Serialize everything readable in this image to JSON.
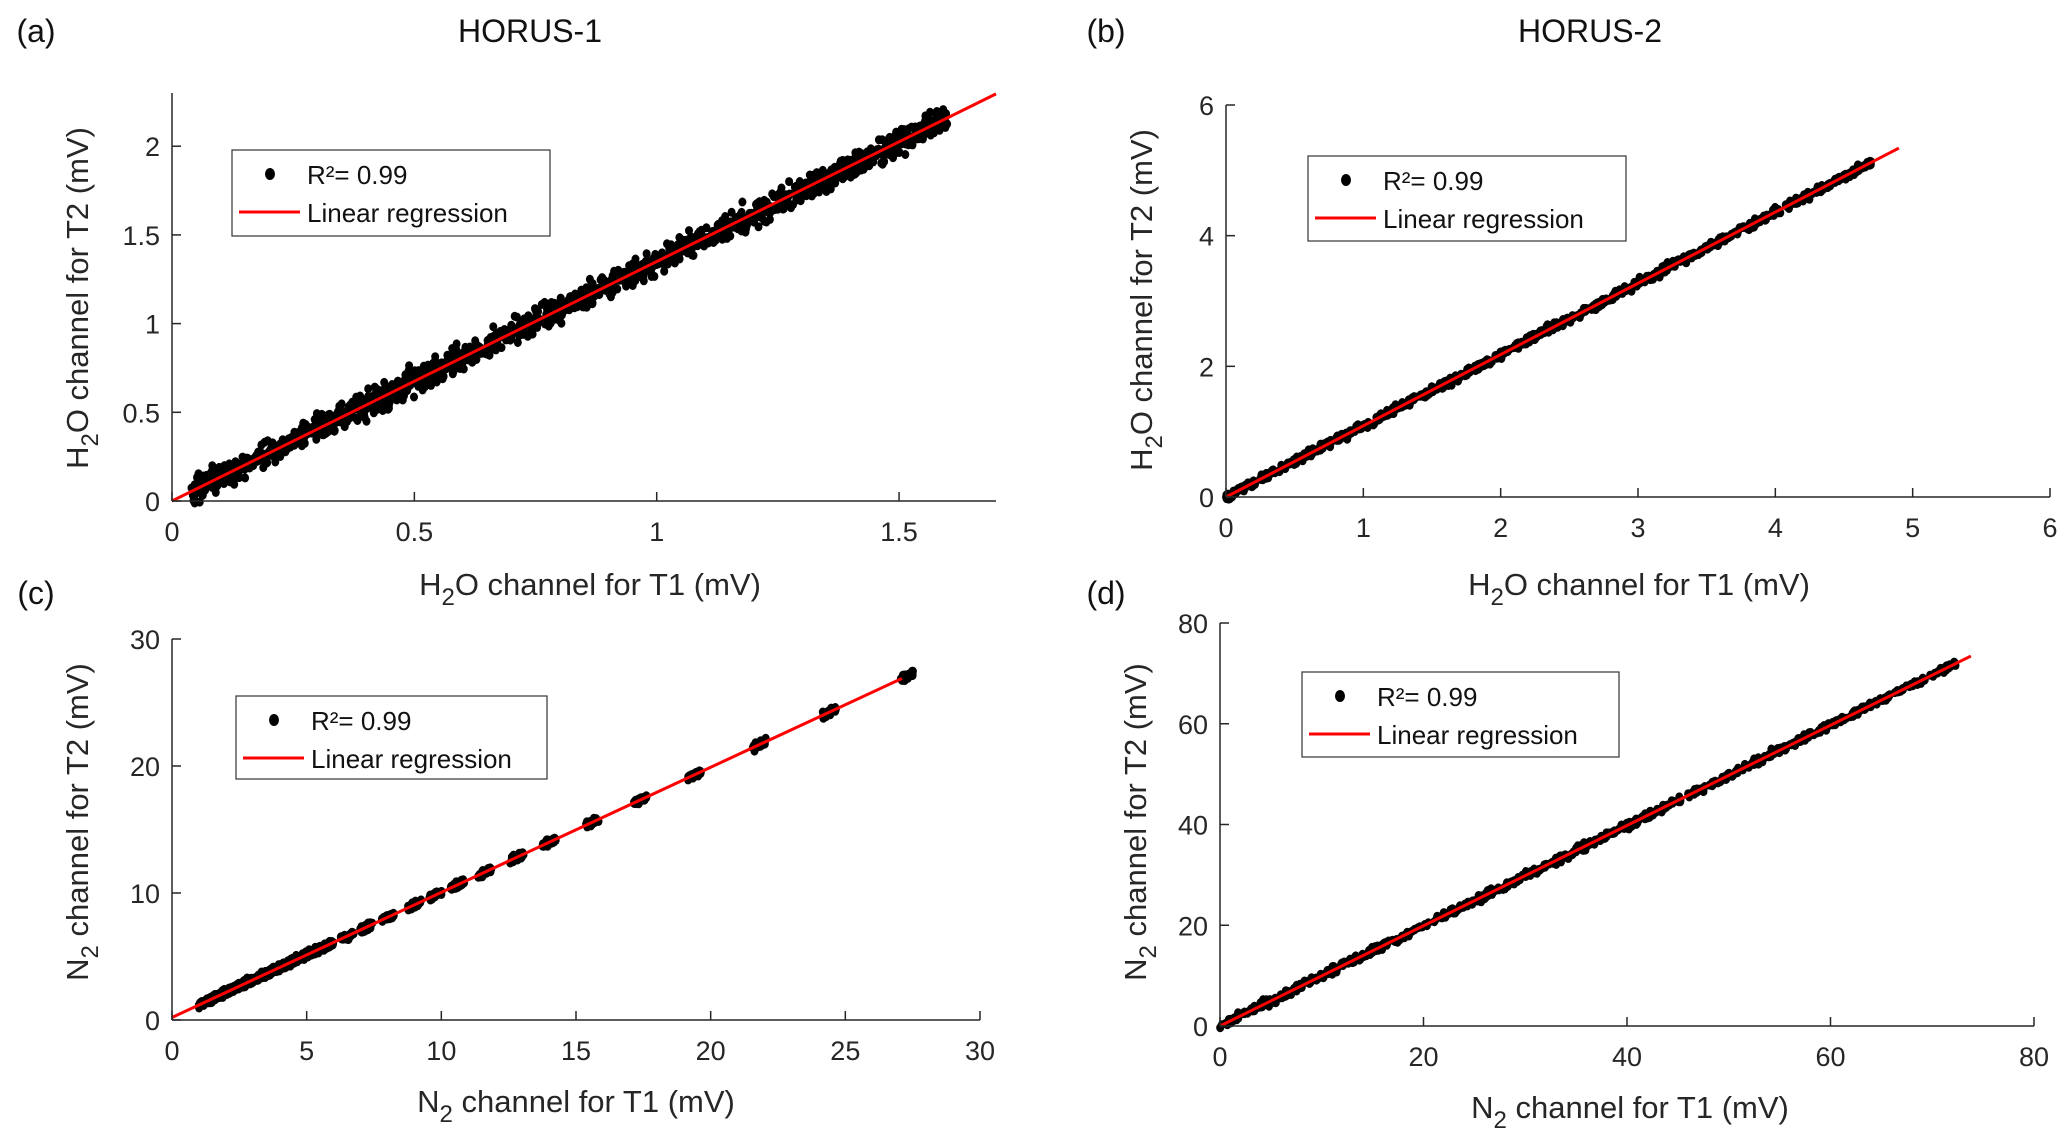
{
  "chart_data": [
    {
      "id": "a",
      "type": "scatter",
      "panel_label": "(a)",
      "title": "HORUS-1",
      "xlabel": {
        "pre": "H",
        "sub": "2",
        "post": "O channel for T1 (mV)"
      },
      "ylabel": {
        "pre": "H",
        "sub": "2",
        "post": "O channel for T2 (mV)"
      },
      "xlim": [
        0,
        1.7
      ],
      "ylim": [
        0,
        2.3
      ],
      "xticks": [
        0,
        0.5,
        1,
        1.5
      ],
      "xtick_labels": [
        "0",
        "0.5",
        "1",
        "1.5"
      ],
      "yticks": [
        0,
        0.5,
        1,
        1.5,
        2
      ],
      "ytick_labels": [
        "0",
        "0.5",
        "1",
        "1.5",
        "2"
      ],
      "scatter": {
        "x_min": 0.04,
        "x_max": 1.6,
        "slope": 1.35,
        "intercept": 0.0,
        "spread": 0.035,
        "clusters": []
      },
      "regression": {
        "slope": 1.35,
        "intercept": 0.0,
        "x_start": 0,
        "x_end": 1.7
      },
      "legend": {
        "position": "top-left",
        "entries": [
          "R²= 0.99",
          "Linear regression"
        ]
      }
    },
    {
      "id": "b",
      "type": "scatter",
      "panel_label": "(b)",
      "title": "HORUS-2",
      "xlabel": {
        "pre": "H",
        "sub": "2",
        "post": "O channel for T1 (mV)"
      },
      "ylabel": {
        "pre": "H",
        "sub": "2",
        "post": "O channel for T2 (mV)"
      },
      "xlim": [
        0,
        6
      ],
      "ylim": [
        0,
        6
      ],
      "xticks": [
        0,
        1,
        2,
        3,
        4,
        5,
        6
      ],
      "xtick_labels": [
        "0",
        "1",
        "2",
        "3",
        "4",
        "5",
        "6"
      ],
      "yticks": [
        0,
        2,
        4,
        6
      ],
      "ytick_labels": [
        "0",
        "2",
        "4",
        "6"
      ],
      "scatter": {
        "x_min": 0.0,
        "x_max": 4.7,
        "slope": 1.09,
        "intercept": 0.0,
        "spread": 0.03,
        "clusters": []
      },
      "regression": {
        "slope": 1.09,
        "intercept": 0.0,
        "x_start": 0,
        "x_end": 4.9
      },
      "legend": {
        "position": "top-left",
        "entries": [
          "R²= 0.99",
          "Linear regression"
        ]
      }
    },
    {
      "id": "c",
      "type": "scatter",
      "panel_label": "(c)",
      "title": "",
      "xlabel": {
        "pre": "N",
        "sub": "2",
        "post": " channel for T1 (mV)"
      },
      "ylabel": {
        "pre": "N",
        "sub": "2",
        "post": " channel for T2 (mV)"
      },
      "xlim": [
        0,
        30
      ],
      "ylim": [
        0,
        30
      ],
      "xticks": [
        0,
        5,
        10,
        15,
        20,
        25,
        30
      ],
      "xtick_labels": [
        "0",
        "5",
        "10",
        "15",
        "20",
        "25",
        "30"
      ],
      "yticks": [
        0,
        10,
        20,
        30
      ],
      "ytick_labels": [
        "0",
        "10",
        "20",
        "30"
      ],
      "scatter": {
        "x_min": 1.0,
        "x_max": 6.0,
        "slope": 0.985,
        "intercept": 0.2,
        "spread": 0.12,
        "clusters": [
          6.5,
          7.2,
          8.0,
          9.0,
          9.8,
          10.6,
          11.6,
          12.8,
          14.0,
          15.6,
          17.4,
          19.4,
          21.8,
          24.4,
          27.3
        ]
      },
      "regression": {
        "slope": 0.985,
        "intercept": 0.2,
        "x_start": 0,
        "x_end": 27.1
      },
      "legend": {
        "position": "top-left",
        "entries": [
          "R²= 0.99",
          "Linear regression"
        ]
      }
    },
    {
      "id": "d",
      "type": "scatter",
      "panel_label": "(d)",
      "title": "",
      "xlabel": {
        "pre": "N",
        "sub": "2",
        "post": " channel for T1 (mV)"
      },
      "ylabel": {
        "pre": "N",
        "sub": "2",
        "post": " channel for T2 (mV)"
      },
      "xlim": [
        0,
        80
      ],
      "ylim": [
        0,
        80
      ],
      "xticks": [
        0,
        20,
        40,
        60,
        80
      ],
      "xtick_labels": [
        "0",
        "20",
        "40",
        "60",
        "80"
      ],
      "yticks": [
        0,
        20,
        40,
        60,
        80
      ],
      "ytick_labels": [
        "0",
        "20",
        "40",
        "60",
        "80"
      ],
      "scatter": {
        "x_min": 0.0,
        "x_max": 73.0,
        "slope": 0.995,
        "intercept": 0.0,
        "spread": 0.35,
        "clusters": []
      },
      "regression": {
        "slope": 0.995,
        "intercept": 0.0,
        "x_start": 0,
        "x_end": 73.8
      },
      "legend": {
        "position": "top-left",
        "entries": [
          "R²= 0.99",
          "Linear regression"
        ]
      }
    }
  ],
  "colors": {
    "points": "#000000",
    "regression": "#ff0000",
    "axis": "#262626"
  }
}
